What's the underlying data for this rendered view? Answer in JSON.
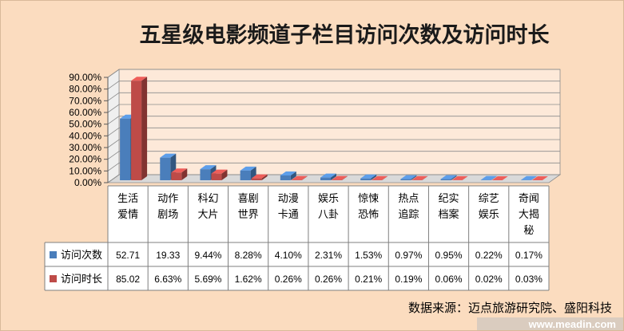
{
  "chart_data": {
    "type": "bar",
    "title": "五星级电影频道子栏目访问次数及访问时长",
    "categories": [
      [
        "生活",
        "爱情"
      ],
      [
        "动作",
        "剧场"
      ],
      [
        "科幻",
        "大片"
      ],
      [
        "喜剧",
        "世界"
      ],
      [
        "动漫",
        "卡通"
      ],
      [
        "娱乐",
        "八卦"
      ],
      [
        "惊悚",
        "恐怖"
      ],
      [
        "热点",
        "追踪"
      ],
      [
        "纪实",
        "档案"
      ],
      [
        "综艺",
        "娱乐"
      ],
      [
        "奇闻",
        "大揭",
        "秘"
      ]
    ],
    "series": [
      {
        "name": "访问次数",
        "color": "#4a7ebb",
        "values": [
          52.71,
          19.33,
          9.44,
          8.28,
          4.1,
          2.31,
          1.53,
          0.97,
          0.95,
          0.22,
          0.17
        ],
        "labels": [
          "52.71",
          "19.33",
          "9.44%",
          "8.28%",
          "4.10%",
          "2.31%",
          "1.53%",
          "0.97%",
          "0.95%",
          "0.22%",
          "0.17%"
        ]
      },
      {
        "name": "访问时长",
        "color": "#be4b48",
        "values": [
          85.02,
          6.63,
          5.69,
          1.62,
          0.26,
          0.26,
          0.21,
          0.19,
          0.06,
          0.02,
          0.03
        ],
        "labels": [
          "85.02",
          "6.63%",
          "5.69%",
          "1.62%",
          "0.26%",
          "0.26%",
          "0.21%",
          "0.19%",
          "0.06%",
          "0.02%",
          "0.03%"
        ]
      }
    ],
    "y_ticks": [
      "0.00%",
      "10.00%",
      "20.00%",
      "30.00%",
      "40.00%",
      "50.00%",
      "60.00%",
      "70.00%",
      "80.00%",
      "90.00%"
    ],
    "ylim": [
      0,
      90
    ],
    "grid": true,
    "legend": "data-table",
    "source": "数据来源：迈点旅游研究院、盛阳科技",
    "watermark": "www.meadin.com"
  }
}
